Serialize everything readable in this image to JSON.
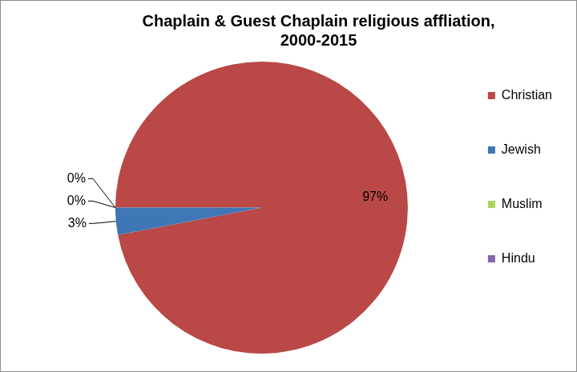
{
  "chart_data": {
    "type": "pie",
    "title": "Chaplain & Guest Chaplain religious affliation, 2000-2015",
    "categories": [
      "Christian",
      "Jewish",
      "Muslim",
      "Hindu"
    ],
    "values": [
      97,
      3,
      0,
      0
    ],
    "value_labels": [
      "97%",
      "3%",
      "0%",
      "0%"
    ],
    "colors": [
      "#b94846",
      "#3f76b5",
      "#a9d65a",
      "#8466a8"
    ],
    "legend": "right",
    "data_labels": true
  }
}
